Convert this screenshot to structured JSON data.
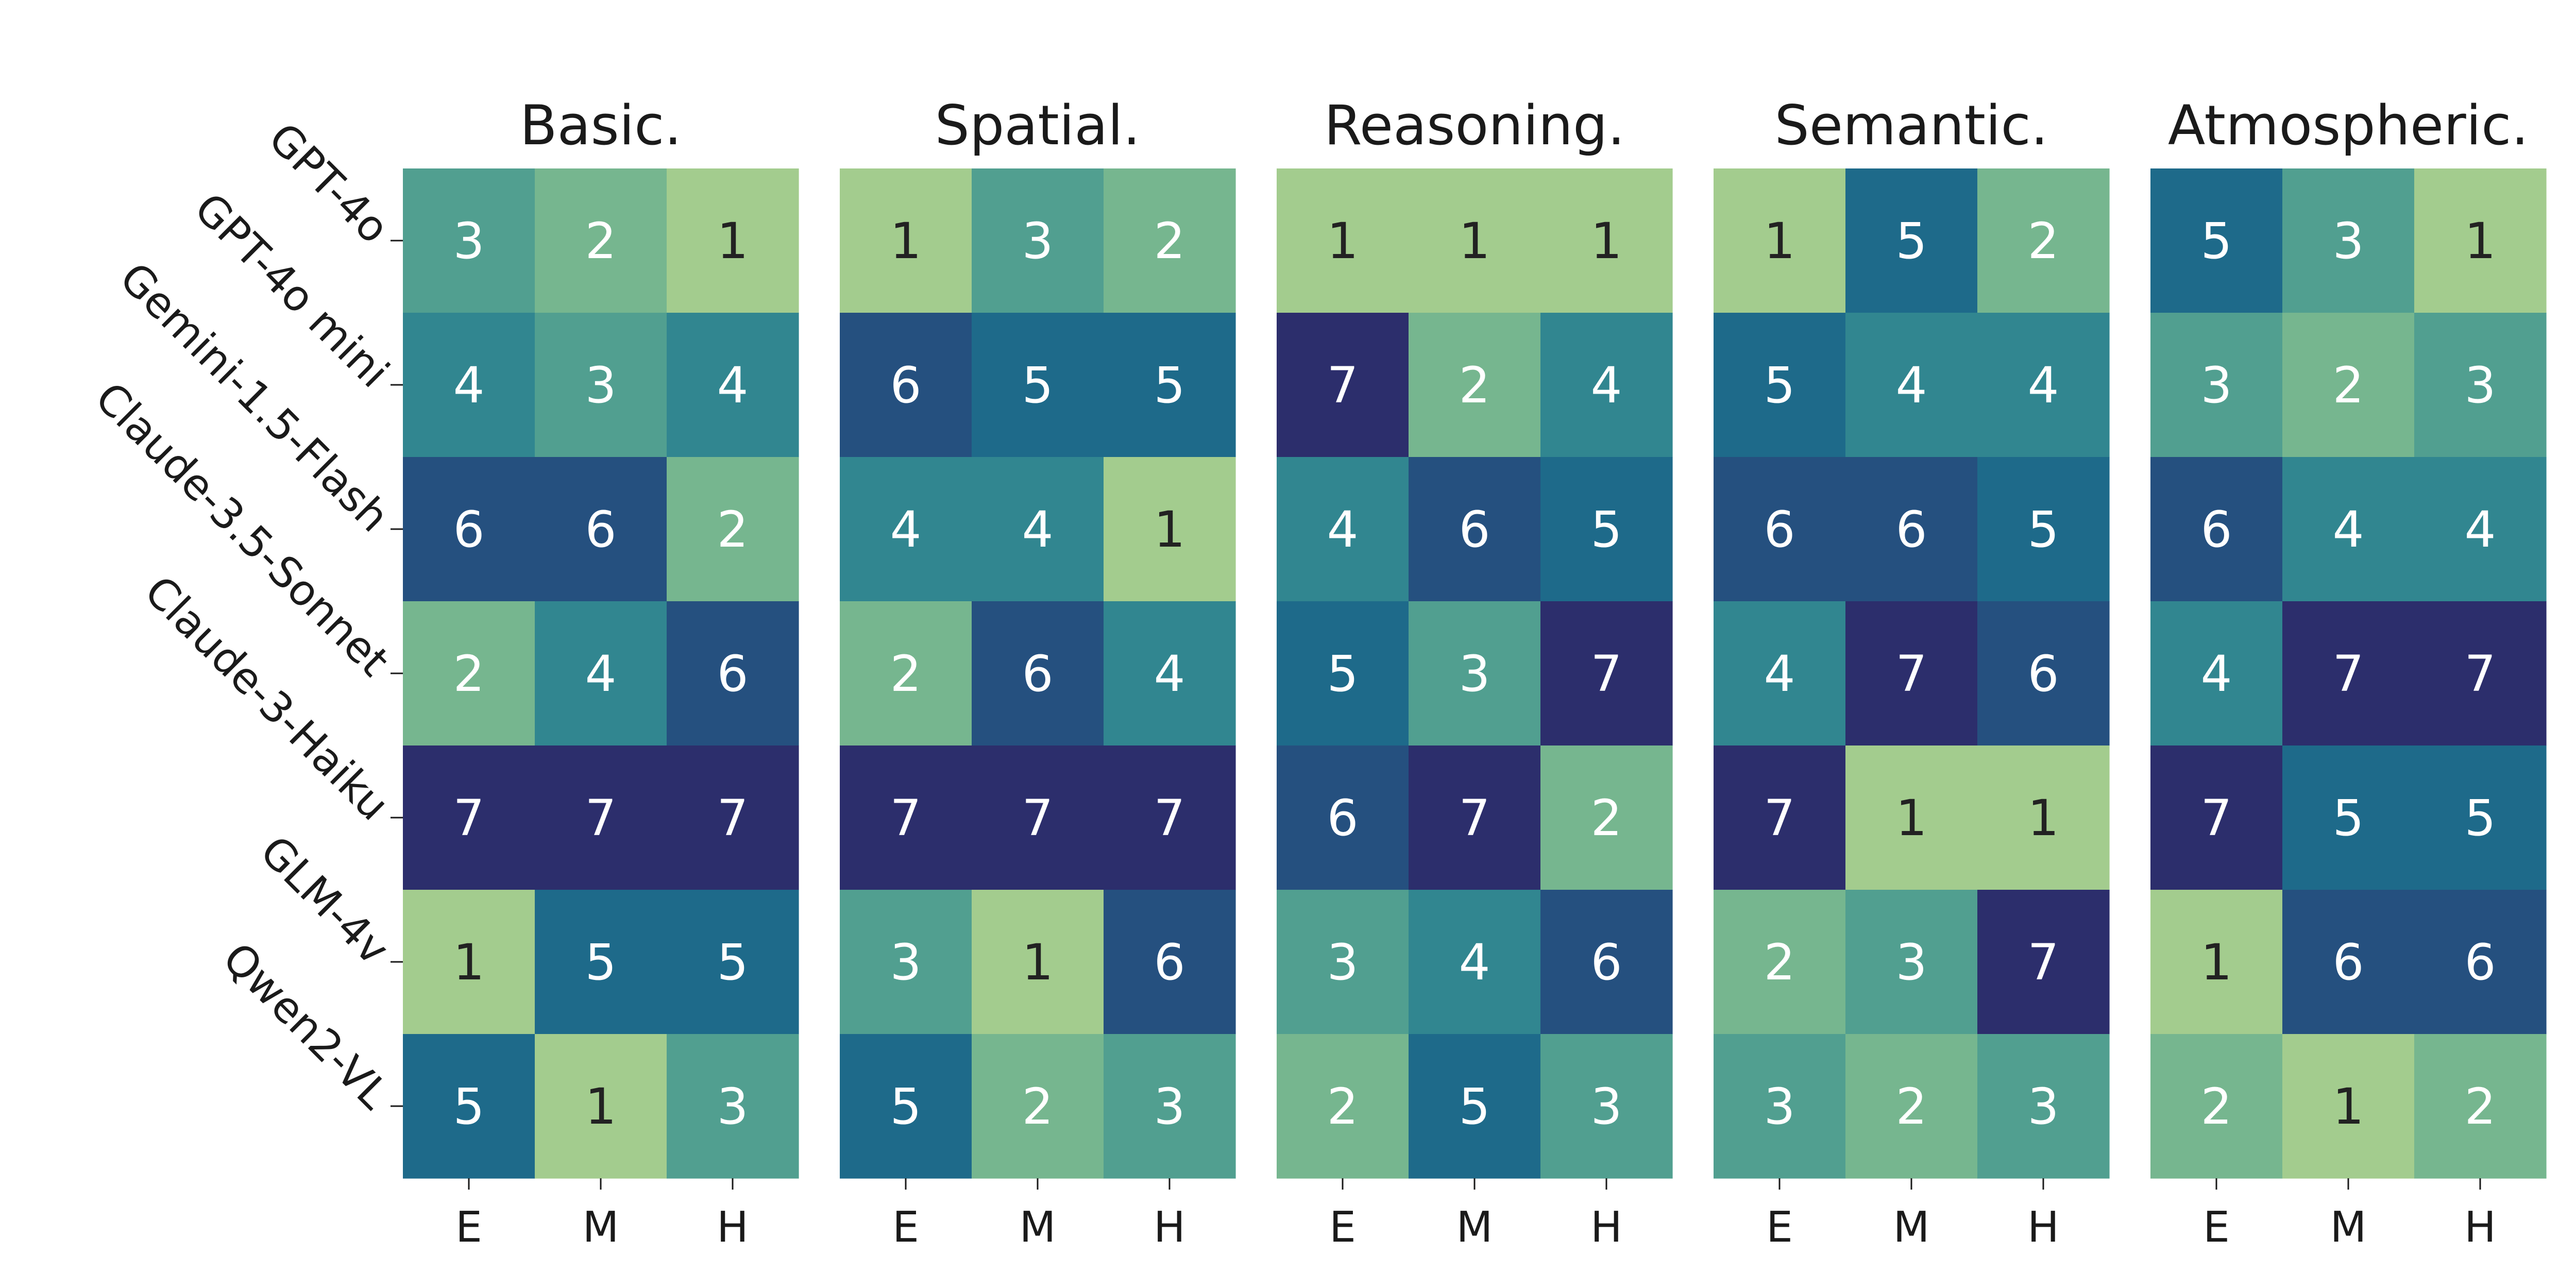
{
  "chart_data": {
    "type": "heatmap",
    "models": [
      "GPT-4o",
      "GPT-4o mini",
      "Gemini-1.5-Flash",
      "Claude-3.5-Sonnet",
      "Claude-3-Haiku",
      "GLM-4v",
      "Qwen2-VL"
    ],
    "difficulties": [
      "E",
      "M",
      "H"
    ],
    "color_scale": {
      "1": "#a3cc8e",
      "2": "#76b68f",
      "3": "#519f90",
      "4": "#318690",
      "5": "#1e6a8a",
      "6": "#25507f",
      "7": "#2c2e6c"
    },
    "text_colors": {
      "dark": "#222222",
      "light": "#ffffff"
    },
    "panels": [
      {
        "title": "Basic.",
        "values": [
          [
            3,
            2,
            1
          ],
          [
            4,
            3,
            4
          ],
          [
            6,
            6,
            2
          ],
          [
            2,
            4,
            6
          ],
          [
            7,
            7,
            7
          ],
          [
            1,
            5,
            5
          ],
          [
            5,
            1,
            3
          ]
        ]
      },
      {
        "title": "Spatial.",
        "values": [
          [
            1,
            3,
            2
          ],
          [
            6,
            5,
            5
          ],
          [
            4,
            4,
            1
          ],
          [
            2,
            6,
            4
          ],
          [
            7,
            7,
            7
          ],
          [
            3,
            1,
            6
          ],
          [
            5,
            2,
            3
          ]
        ]
      },
      {
        "title": "Reasoning.",
        "values": [
          [
            1,
            1,
            1
          ],
          [
            7,
            2,
            4
          ],
          [
            4,
            6,
            5
          ],
          [
            5,
            3,
            7
          ],
          [
            6,
            7,
            2
          ],
          [
            3,
            4,
            6
          ],
          [
            2,
            5,
            3
          ]
        ]
      },
      {
        "title": "Semantic.",
        "values": [
          [
            1,
            5,
            2
          ],
          [
            5,
            4,
            4
          ],
          [
            6,
            6,
            5
          ],
          [
            4,
            7,
            6
          ],
          [
            7,
            1,
            1
          ],
          [
            2,
            3,
            7
          ],
          [
            3,
            2,
            3
          ]
        ]
      },
      {
        "title": "Atmospheric.",
        "values": [
          [
            5,
            3,
            1
          ],
          [
            3,
            2,
            3
          ],
          [
            6,
            4,
            4
          ],
          [
            4,
            7,
            7
          ],
          [
            7,
            5,
            5
          ],
          [
            1,
            6,
            6
          ],
          [
            2,
            1,
            2
          ]
        ]
      }
    ]
  }
}
